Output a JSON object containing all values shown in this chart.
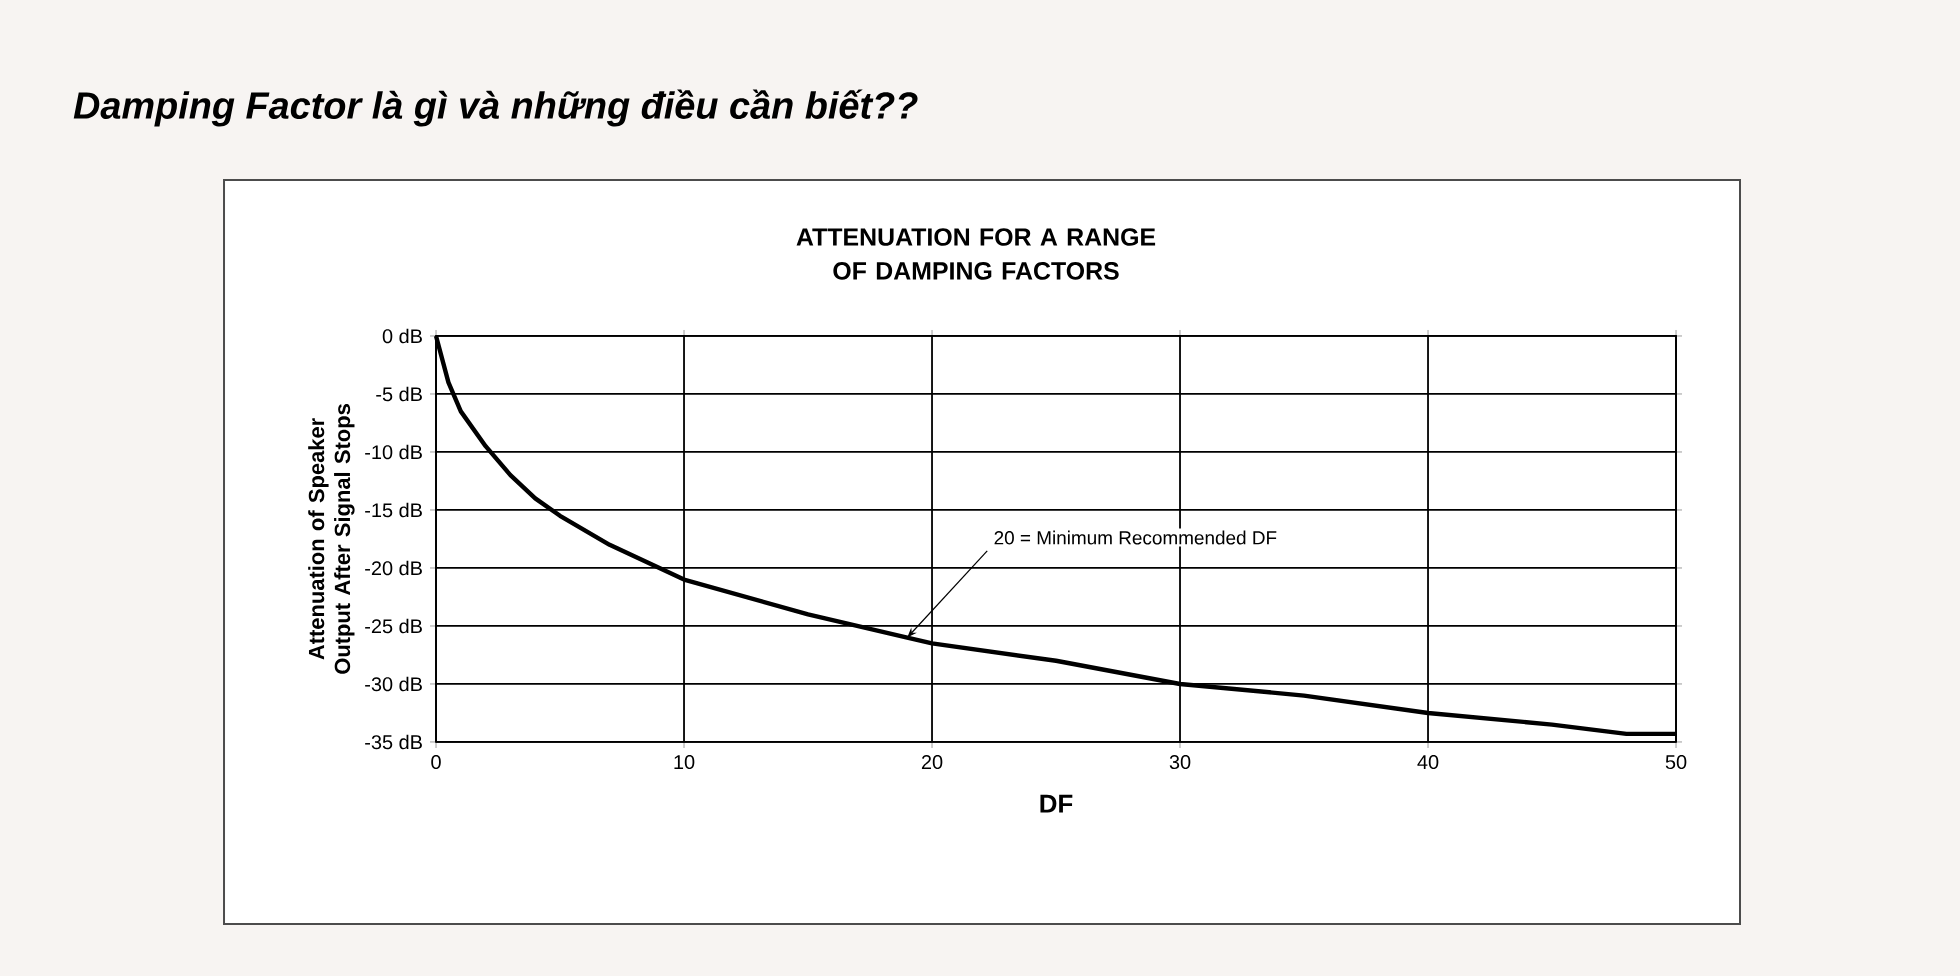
{
  "chart_data": {
    "type": "line",
    "title": "Damping Factor là gì và những điều cần biết??",
    "subtitle": "ATTENUATION FOR A RANGE OF DAMPING FACTORS",
    "xlabel": "DF",
    "ylabel": "Attenuation of Speaker Output After Signal Stops",
    "x": [
      0,
      0.5,
      1,
      2,
      3,
      4,
      5,
      7,
      10,
      15,
      19,
      20,
      25,
      30,
      35,
      40,
      45,
      48,
      50
    ],
    "series": [
      {
        "color": "#000000",
        "values": [
          0,
          -4,
          -6.5,
          -9.5,
          -12,
          -14,
          -15.5,
          -18,
          -21,
          -24,
          -26,
          -26.5,
          -28,
          -30,
          -31,
          -32.5,
          -33.5,
          -34.3,
          -34.3
        ]
      }
    ],
    "xlim": [
      0,
      50
    ],
    "xticks": [
      0,
      10,
      20,
      30,
      40,
      50
    ],
    "ylim": [
      -35,
      0
    ],
    "yticks": [
      {
        "value": -35,
        "label": "-35 dB"
      },
      {
        "value": -30,
        "label": "-30 dB"
      },
      {
        "value": -25,
        "label": "-25 dB"
      },
      {
        "value": -20,
        "label": "-20 dB"
      },
      {
        "value": -15,
        "label": "-15 dB"
      },
      {
        "value": -10,
        "label": "-10 dB"
      },
      {
        "value": -5,
        "label": "-5 dB"
      },
      {
        "value": 0,
        "label": "0 dB"
      }
    ],
    "annotations": [
      {
        "text": "20 = Minimum Recommended DF",
        "x": 19,
        "y": -26
      }
    ],
    "grid": true,
    "marker": "none",
    "line_style": "solid"
  }
}
